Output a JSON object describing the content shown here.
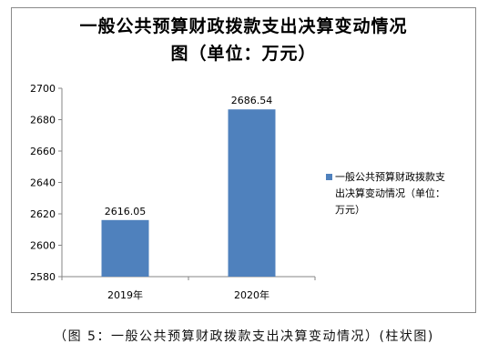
{
  "chart_data": {
    "type": "bar",
    "title_line1": "一般公共预算财政拨款支出决算变动情况",
    "title_line2": "图（单位：万元）",
    "categories": [
      "2019年",
      "2020年"
    ],
    "values": [
      2616.05,
      2686.54
    ],
    "data_labels": [
      "2616.05",
      "2686.54"
    ],
    "series": [
      {
        "name": "一般公共预算财政拨款支出决算变动情况（单位：万元）",
        "values": [
          2616.05,
          2686.54
        ]
      }
    ],
    "ylim": [
      2580,
      2700
    ],
    "yticks": [
      "2580",
      "2600",
      "2620",
      "2640",
      "2660",
      "2680",
      "2700"
    ],
    "grid": false,
    "legend_position": "right",
    "color": "#4f81bd"
  },
  "legend": {
    "line1": "一般公共预算财政拨款支",
    "line2": "出决算变动情况（单位：",
    "line3": "万元）"
  },
  "caption": "（图 5：一般公共预算财政拨款支出决算变动情况）(柱状图)"
}
